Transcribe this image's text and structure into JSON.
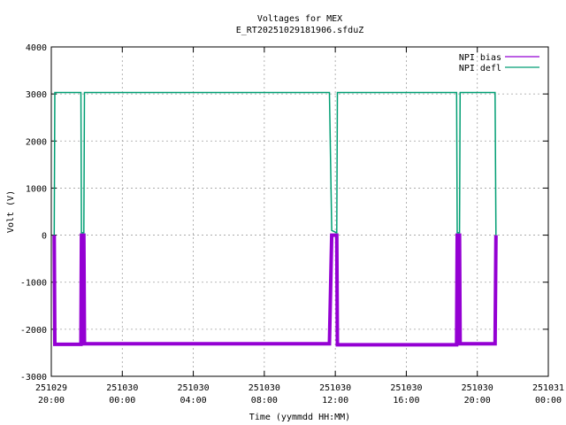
{
  "chart_data": {
    "type": "line",
    "title": "Voltages for MEX",
    "subtitle": "E_RT20251029181906.sfduZ",
    "xlabel": "Time (yymmdd HH:MM)",
    "ylabel": "Volt (V)",
    "xlim": [
      "2025-10-29 20:00",
      "2025-10-31 00:00"
    ],
    "ylim": [
      -3000,
      4000
    ],
    "y_ticks": [
      "4000",
      "3000",
      "2000",
      "1000",
      "0",
      "-1000",
      "-2000",
      "-3000"
    ],
    "x_ticks": [
      {
        "date": "251029",
        "time": "20:00"
      },
      {
        "date": "251030",
        "time": "00:00"
      },
      {
        "date": "251030",
        "time": "04:00"
      },
      {
        "date": "251030",
        "time": "08:00"
      },
      {
        "date": "251030",
        "time": "12:00"
      },
      {
        "date": "251030",
        "time": "16:00"
      },
      {
        "date": "251030",
        "time": "20:00"
      },
      {
        "date": "251031",
        "time": "00:00"
      }
    ],
    "grid": true,
    "legend_position": "top-right",
    "series": [
      {
        "name": "NPI bias",
        "color": "#9400d3",
        "points": [
          [
            "2025-10-29 20:10",
            0
          ],
          [
            "2025-10-29 20:12",
            -2320
          ],
          [
            "2025-10-29 21:40",
            -2320
          ],
          [
            "2025-10-29 21:42",
            0
          ],
          [
            "2025-10-29 21:50",
            0
          ],
          [
            "2025-10-29 21:52",
            -2310
          ],
          [
            "2025-10-30 11:40",
            -2310
          ],
          [
            "2025-10-30 11:48",
            0
          ],
          [
            "2025-10-30 12:05",
            0
          ],
          [
            "2025-10-30 12:07",
            -2330
          ],
          [
            "2025-10-30 18:50",
            -2330
          ],
          [
            "2025-10-30 18:52",
            0
          ],
          [
            "2025-10-30 19:00",
            0
          ],
          [
            "2025-10-30 19:02",
            -2310
          ],
          [
            "2025-10-30 21:00",
            -2310
          ],
          [
            "2025-10-30 21:03",
            0
          ]
        ]
      },
      {
        "name": "NPI defl",
        "color": "#009e73",
        "points": [
          [
            "2025-10-29 20:10",
            0
          ],
          [
            "2025-10-29 20:12",
            3030
          ],
          [
            "2025-10-29 21:40",
            3030
          ],
          [
            "2025-10-29 21:42",
            50
          ],
          [
            "2025-10-29 21:50",
            50
          ],
          [
            "2025-10-29 21:52",
            3030
          ],
          [
            "2025-10-30 11:40",
            3030
          ],
          [
            "2025-10-30 11:48",
            100
          ],
          [
            "2025-10-30 12:05",
            50
          ],
          [
            "2025-10-30 12:07",
            3030
          ],
          [
            "2025-10-30 18:50",
            3030
          ],
          [
            "2025-10-30 18:52",
            50
          ],
          [
            "2025-10-30 19:00",
            50
          ],
          [
            "2025-10-30 19:02",
            3030
          ],
          [
            "2025-10-30 21:00",
            3030
          ],
          [
            "2025-10-30 21:03",
            0
          ]
        ]
      }
    ]
  }
}
